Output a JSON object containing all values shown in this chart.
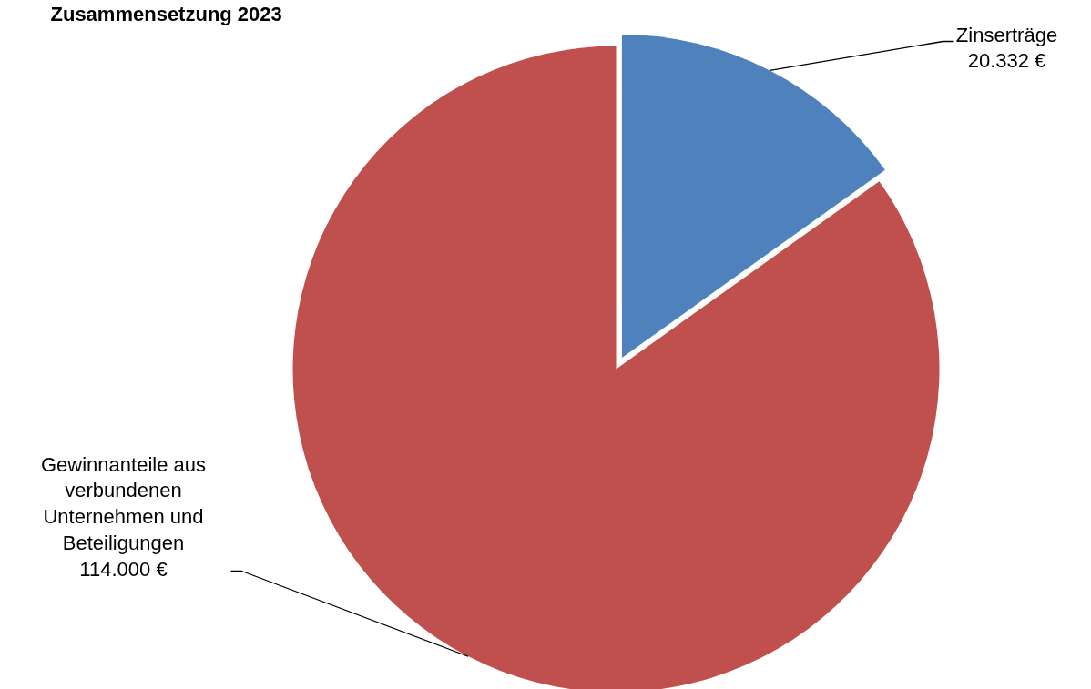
{
  "chart_data": {
    "type": "pie",
    "title": "Zusammensetzung 2023",
    "categories": [
      "Zinserträge",
      "Gewinnanteile aus verbundenen Unternehmen und Beteiligungen"
    ],
    "values": [
      20332,
      114000
    ],
    "value_labels": [
      "20.332 €",
      "114.000 €"
    ],
    "colors": [
      "#4f81bd",
      "#c0504d"
    ]
  }
}
